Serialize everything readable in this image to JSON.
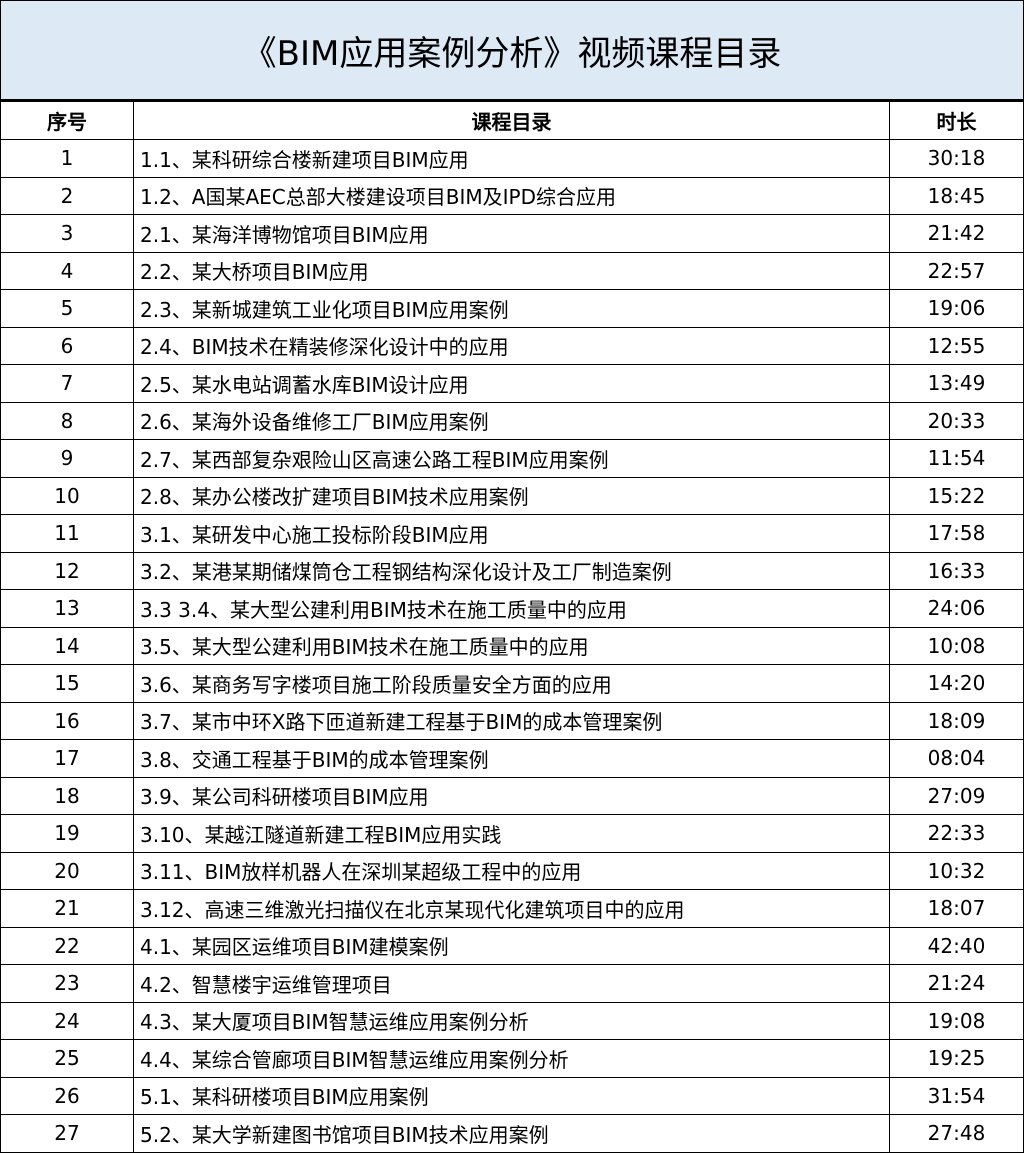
{
  "title": "《BIM应用案例分析》视频课程目录",
  "headers": {
    "index": "序号",
    "course": "课程目录",
    "duration": "时长"
  },
  "rows": [
    {
      "index": "1",
      "course": "1.1、某科研综合楼新建项目BIM应用",
      "duration": "30:18"
    },
    {
      "index": "2",
      "course": "1.2、A国某AEC总部大楼建设项目BIM及IPD综合应用",
      "duration": "18:45"
    },
    {
      "index": "3",
      "course": "2.1、某海洋博物馆项目BIM应用",
      "duration": "21:42"
    },
    {
      "index": "4",
      "course": "2.2、某大桥项目BIM应用",
      "duration": "22:57"
    },
    {
      "index": "5",
      "course": "2.3、某新城建筑工业化项目BIM应用案例",
      "duration": "19:06"
    },
    {
      "index": "6",
      "course": "2.4、BIM技术在精装修深化设计中的应用",
      "duration": "12:55"
    },
    {
      "index": "7",
      "course": "2.5、某水电站调蓄水库BIM设计应用",
      "duration": "13:49"
    },
    {
      "index": "8",
      "course": "2.6、某海外设备维修工厂BIM应用案例",
      "duration": "20:33"
    },
    {
      "index": "9",
      "course": "2.7、某西部复杂艰险山区高速公路工程BIM应用案例",
      "duration": "11:54"
    },
    {
      "index": "10",
      "course": "2.8、某办公楼改扩建项目BIM技术应用案例",
      "duration": "15:22"
    },
    {
      "index": "11",
      "course": "3.1、某研发中心施工投标阶段BIM应用",
      "duration": "17:58"
    },
    {
      "index": "12",
      "course": "3.2、某港某期储煤筒仓工程钢结构深化设计及工厂制造案例",
      "duration": "16:33"
    },
    {
      "index": "13",
      "course": "3.3 3.4、某大型公建利用BIM技术在施工质量中的应用",
      "duration": "24:06"
    },
    {
      "index": "14",
      "course": "3.5、某大型公建利用BIM技术在施工质量中的应用",
      "duration": "10:08"
    },
    {
      "index": "15",
      "course": "3.6、某商务写字楼项目施工阶段质量安全方面的应用",
      "duration": "14:20"
    },
    {
      "index": "16",
      "course": "3.7、某市中环X路下匝道新建工程基于BIM的成本管理案例",
      "duration": "18:09"
    },
    {
      "index": "17",
      "course": "3.8、交通工程基于BIM的成本管理案例",
      "duration": "08:04"
    },
    {
      "index": "18",
      "course": "3.9、某公司科研楼项目BIM应用",
      "duration": "27:09"
    },
    {
      "index": "19",
      "course": "3.10、某越江隧道新建工程BIM应用实践",
      "duration": "22:33"
    },
    {
      "index": "20",
      "course": "3.11、BIM放样机器人在深圳某超级工程中的应用",
      "duration": "10:32"
    },
    {
      "index": "21",
      "course": "3.12、高速三维激光扫描仪在北京某现代化建筑项目中的应用",
      "duration": "18:07"
    },
    {
      "index": "22",
      "course": "4.1、某园区运维项目BIM建模案例",
      "duration": "42:40"
    },
    {
      "index": "23",
      "course": "4.2、智慧楼宇运维管理项目",
      "duration": "21:24"
    },
    {
      "index": "24",
      "course": "4.3、某大厦项目BIM智慧运维应用案例分析",
      "duration": "19:08"
    },
    {
      "index": "25",
      "course": "4.4、某综合管廊项目BIM智慧运维应用案例分析",
      "duration": "19:25"
    },
    {
      "index": "26",
      "course": "5.1、某科研楼项目BIM应用案例",
      "duration": "31:54"
    },
    {
      "index": "27",
      "course": "5.2、某大学新建图书馆项目BIM技术应用案例",
      "duration": "27:48"
    }
  ]
}
